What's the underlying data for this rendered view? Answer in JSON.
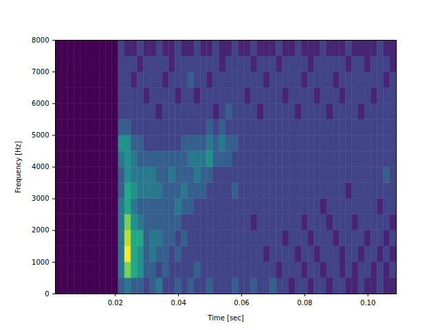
{
  "chart_data": {
    "type": "heatmap",
    "x_label": "Time [sec]",
    "y_label": "Frequency [Hz]",
    "xlim": [
      0.001,
      0.109
    ],
    "ylim": [
      0,
      8000
    ],
    "xticks": [
      {
        "value": 0.02,
        "label": "0.02"
      },
      {
        "value": 0.04,
        "label": "0.04"
      },
      {
        "value": 0.06,
        "label": "0.06"
      },
      {
        "value": 0.08,
        "label": "0.08"
      },
      {
        "value": 0.1,
        "label": "0.10"
      }
    ],
    "yticks": [
      0,
      1000,
      2000,
      3000,
      4000,
      5000,
      6000,
      7000,
      8000
    ],
    "color": "viridis",
    "cells": {
      "zlim": [
        0,
        10
      ],
      "x_edges": [
        0.001,
        0.003,
        0.005,
        0.007,
        0.009,
        0.011,
        0.013,
        0.015,
        0.017,
        0.019,
        0.021,
        0.023,
        0.025,
        0.027,
        0.029,
        0.031,
        0.033,
        0.035,
        0.037,
        0.039,
        0.041,
        0.043,
        0.045,
        0.047,
        0.049,
        0.051,
        0.053,
        0.055,
        0.057,
        0.059,
        0.061,
        0.063,
        0.065,
        0.067,
        0.069,
        0.071,
        0.073,
        0.075,
        0.077,
        0.079,
        0.081,
        0.083,
        0.085,
        0.087,
        0.089,
        0.091,
        0.093,
        0.095,
        0.097,
        0.099,
        0.101,
        0.103,
        0.105,
        0.107,
        0.109
      ],
      "y_edges": [
        0,
        500,
        1000,
        1500,
        2000,
        2500,
        3000,
        3500,
        4000,
        4500,
        5000,
        5500,
        6000,
        6500,
        7000,
        7500,
        8000
      ],
      "values": [
        [
          0,
          0,
          0,
          0,
          0,
          0,
          0,
          0,
          0,
          0,
          3,
          4,
          3,
          3,
          2,
          3,
          4,
          2,
          2,
          3,
          2,
          3,
          2,
          2,
          3,
          2,
          2,
          2,
          3,
          2,
          2,
          3,
          2,
          2,
          3,
          2,
          2,
          1,
          2,
          2,
          1,
          2,
          2,
          1,
          2,
          2,
          1,
          1,
          2,
          1,
          1,
          2,
          1,
          1
        ],
        [
          0,
          0,
          0,
          0,
          0,
          0,
          0,
          0,
          0,
          0,
          4,
          8,
          6,
          5,
          3,
          3,
          2,
          3,
          2,
          2,
          2,
          2,
          3,
          2,
          2,
          2,
          2,
          2,
          2,
          2,
          2,
          2,
          2,
          2,
          2,
          1,
          2,
          2,
          2,
          1,
          2,
          2,
          1,
          2,
          2,
          1,
          2,
          1,
          2,
          2,
          1,
          2,
          1,
          2
        ],
        [
          0,
          0,
          0,
          0,
          0,
          0,
          0,
          0,
          0,
          0,
          4,
          10,
          6,
          5,
          3,
          4,
          3,
          3,
          2,
          3,
          2,
          2,
          2,
          2,
          2,
          2,
          2,
          2,
          2,
          2,
          2,
          2,
          2,
          1,
          2,
          2,
          2,
          2,
          1,
          2,
          2,
          1,
          2,
          2,
          2,
          1,
          2,
          2,
          1,
          2,
          2,
          1,
          2,
          1
        ],
        [
          0,
          0,
          0,
          0,
          0,
          0,
          0,
          0,
          0,
          0,
          4,
          9,
          6,
          6,
          3,
          4,
          4,
          3,
          3,
          2,
          3,
          2,
          2,
          2,
          2,
          2,
          2,
          2,
          2,
          2,
          2,
          2,
          2,
          2,
          2,
          2,
          1,
          2,
          2,
          2,
          1,
          2,
          2,
          2,
          1,
          2,
          2,
          2,
          2,
          1,
          2,
          2,
          1,
          2
        ],
        [
          0,
          0,
          0,
          0,
          0,
          0,
          0,
          0,
          0,
          0,
          4,
          8,
          5,
          4,
          3,
          3,
          3,
          3,
          3,
          3,
          2,
          2,
          2,
          2,
          2,
          2,
          2,
          2,
          2,
          2,
          2,
          1,
          2,
          2,
          2,
          2,
          2,
          2,
          2,
          1,
          2,
          2,
          2,
          1,
          2,
          2,
          2,
          1,
          2,
          2,
          2,
          2,
          2,
          1
        ],
        [
          0,
          0,
          0,
          0,
          0,
          0,
          0,
          0,
          0,
          0,
          4,
          6,
          4,
          3,
          3,
          3,
          3,
          3,
          3,
          4,
          3,
          3,
          2,
          2,
          2,
          2,
          2,
          2,
          2,
          2,
          2,
          2,
          2,
          2,
          2,
          2,
          2,
          2,
          2,
          2,
          2,
          2,
          1,
          2,
          2,
          2,
          2,
          2,
          2,
          2,
          2,
          1,
          2,
          2
        ],
        [
          0,
          0,
          0,
          0,
          0,
          0,
          0,
          0,
          0,
          0,
          3,
          6,
          5,
          4,
          4,
          4,
          4,
          3,
          3,
          3,
          4,
          3,
          3,
          3,
          2,
          2,
          2,
          2,
          3,
          2,
          2,
          2,
          2,
          2,
          2,
          2,
          2,
          2,
          2,
          2,
          2,
          2,
          2,
          2,
          2,
          2,
          1,
          2,
          2,
          2,
          2,
          2,
          2,
          2
        ],
        [
          0,
          0,
          0,
          0,
          0,
          0,
          0,
          0,
          0,
          0,
          3,
          5,
          4,
          4,
          4,
          4,
          3,
          3,
          4,
          3,
          3,
          3,
          4,
          3,
          3,
          2,
          2,
          2,
          2,
          2,
          2,
          2,
          2,
          2,
          2,
          2,
          2,
          2,
          2,
          2,
          2,
          2,
          2,
          2,
          2,
          2,
          2,
          2,
          2,
          2,
          2,
          2,
          3,
          2
        ],
        [
          0,
          0,
          0,
          0,
          0,
          0,
          0,
          0,
          0,
          0,
          4,
          5,
          4,
          3,
          3,
          3,
          3,
          3,
          3,
          3,
          3,
          4,
          4,
          4,
          5,
          3,
          3,
          3,
          2,
          2,
          2,
          2,
          2,
          2,
          2,
          2,
          2,
          2,
          2,
          2,
          2,
          2,
          2,
          2,
          2,
          2,
          2,
          2,
          2,
          2,
          2,
          2,
          2,
          2
        ],
        [
          0,
          0,
          0,
          0,
          0,
          0,
          0,
          0,
          0,
          0,
          5,
          5,
          3,
          3,
          2,
          2,
          2,
          2,
          2,
          2,
          3,
          3,
          3,
          3,
          4,
          3,
          4,
          3,
          3,
          2,
          2,
          2,
          2,
          2,
          2,
          2,
          2,
          2,
          2,
          2,
          2,
          2,
          2,
          2,
          2,
          2,
          2,
          2,
          2,
          2,
          2,
          2,
          2,
          2
        ],
        [
          0,
          0,
          0,
          0,
          0,
          0,
          0,
          0,
          0,
          0,
          3,
          3,
          2,
          2,
          2,
          2,
          2,
          2,
          2,
          2,
          2,
          2,
          2,
          2,
          3,
          2,
          3,
          2,
          2,
          2,
          2,
          2,
          2,
          2,
          2,
          2,
          2,
          2,
          2,
          2,
          2,
          2,
          2,
          2,
          2,
          2,
          2,
          2,
          2,
          2,
          2,
          2,
          2,
          2
        ],
        [
          0,
          0,
          0,
          0,
          0,
          0,
          0,
          0,
          0,
          0,
          2,
          2,
          2,
          2,
          2,
          2,
          1,
          2,
          2,
          2,
          2,
          2,
          2,
          2,
          2,
          1,
          2,
          3,
          2,
          2,
          2,
          2,
          1,
          2,
          2,
          2,
          2,
          2,
          1,
          2,
          2,
          2,
          2,
          1,
          2,
          2,
          2,
          2,
          1,
          2,
          2,
          2,
          2,
          2
        ],
        [
          0,
          0,
          0,
          0,
          0,
          0,
          0,
          0,
          0,
          0,
          2,
          2,
          2,
          2,
          1,
          2,
          2,
          2,
          2,
          1,
          2,
          2,
          1,
          2,
          2,
          2,
          2,
          2,
          2,
          2,
          1,
          2,
          2,
          2,
          2,
          2,
          1,
          2,
          2,
          2,
          2,
          1,
          2,
          2,
          2,
          1,
          2,
          2,
          2,
          2,
          1,
          2,
          2,
          2
        ],
        [
          0,
          0,
          0,
          0,
          0,
          0,
          0,
          0,
          0,
          0,
          2,
          2,
          1,
          2,
          2,
          2,
          2,
          1,
          2,
          2,
          2,
          3,
          2,
          2,
          1,
          2,
          2,
          2,
          2,
          2,
          2,
          2,
          2,
          1,
          2,
          2,
          2,
          2,
          2,
          1,
          2,
          2,
          2,
          2,
          1,
          2,
          2,
          2,
          2,
          2,
          2,
          2,
          1,
          2
        ],
        [
          0,
          0,
          0,
          0,
          0,
          0,
          0,
          0,
          0,
          0,
          2,
          2,
          2,
          1,
          2,
          2,
          2,
          2,
          1,
          2,
          2,
          2,
          2,
          2,
          2,
          2,
          1,
          2,
          2,
          2,
          2,
          1,
          2,
          2,
          2,
          1,
          2,
          2,
          2,
          2,
          1,
          2,
          2,
          2,
          2,
          2,
          1,
          2,
          2,
          1,
          2,
          2,
          2,
          1
        ],
        [
          0,
          0,
          0,
          0,
          0,
          0,
          0,
          0,
          0,
          0,
          2,
          1,
          1,
          2,
          1,
          1,
          2,
          1,
          1,
          2,
          1,
          1,
          2,
          1,
          1,
          2,
          1,
          1,
          2,
          1,
          1,
          2,
          1,
          1,
          1,
          2,
          1,
          1,
          2,
          1,
          1,
          1,
          2,
          1,
          1,
          1,
          2,
          1,
          1,
          1,
          1,
          2,
          1,
          1
        ]
      ]
    }
  }
}
